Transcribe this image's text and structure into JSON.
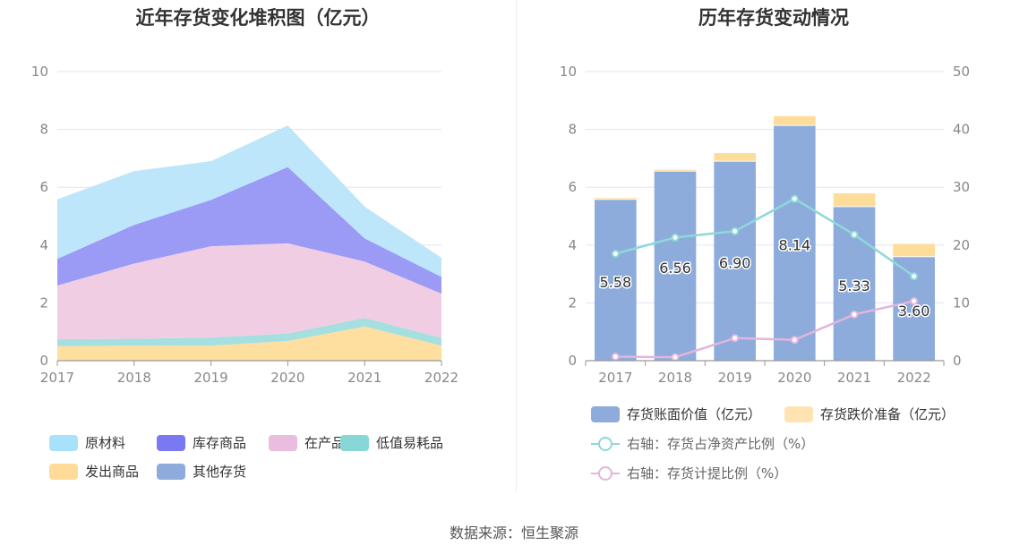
{
  "left_title": "近年存货变化堆积图（亿元）",
  "right_title": "历年存货变动情况",
  "source": "数据来源：恒生聚源",
  "chart_data": [
    {
      "type": "area",
      "stacked": true,
      "x": [
        "2017",
        "2018",
        "2019",
        "2020",
        "2021",
        "2022"
      ],
      "ylim": [
        0,
        10
      ],
      "yticks": [
        "0",
        "2",
        "4",
        "6",
        "8",
        "10"
      ],
      "series": [
        {
          "name": "发出商品",
          "color": "#FFDFA0",
          "values": [
            0.5,
            0.52,
            0.52,
            0.68,
            1.18,
            0.52
          ]
        },
        {
          "name": "低值易耗品",
          "color": "#A6DFDF",
          "values": [
            0.24,
            0.24,
            0.28,
            0.26,
            0.3,
            0.27
          ]
        },
        {
          "name": "在产品",
          "color": "#F0CDE3",
          "values": [
            1.86,
            2.6,
            3.16,
            3.12,
            1.95,
            1.53
          ]
        },
        {
          "name": "库存商品",
          "color": "#9B9BF6",
          "values": [
            0.92,
            1.34,
            1.6,
            2.64,
            0.8,
            0.58
          ]
        },
        {
          "name": "原材料",
          "color": "#BDE6FA",
          "values": [
            2.06,
            1.86,
            1.34,
            1.44,
            1.1,
            0.66
          ]
        }
      ],
      "legend": [
        {
          "name": "原材料",
          "color": "#A8E2FA"
        },
        {
          "name": "库存商品",
          "color": "#7B79F2"
        },
        {
          "name": "在产品",
          "color": "#EABCDD"
        },
        {
          "name": "低值易耗品",
          "color": "#88D7D7"
        },
        {
          "name": "发出商品",
          "color": "#FEDB99"
        },
        {
          "name": "其他存货",
          "color": "#8EABDB"
        }
      ]
    },
    {
      "type": "bar",
      "categories": [
        "2017",
        "2018",
        "2019",
        "2020",
        "2021",
        "2022"
      ],
      "ylim": [
        0,
        10
      ],
      "y2lim": [
        0,
        50
      ],
      "yticks": [
        "0",
        "2",
        "4",
        "6",
        "8",
        "10"
      ],
      "y2ticks": [
        "0",
        "10",
        "20",
        "30",
        "40",
        "50"
      ],
      "series": [
        {
          "name": "存货账面价值（亿元）",
          "type": "bar",
          "stack": "a",
          "color": "#8DACDB",
          "values": [
            5.58,
            6.56,
            6.9,
            8.14,
            5.33,
            3.6
          ],
          "labels": [
            "5.58",
            "6.56",
            "6.90",
            "8.14",
            "5.33",
            "3.60"
          ]
        },
        {
          "name": "存货跌价准备（亿元）",
          "type": "bar",
          "stack": "a",
          "color": "#FEDC99",
          "values": [
            0.05,
            0.05,
            0.28,
            0.32,
            0.46,
            0.44
          ]
        },
        {
          "name": "右轴：存货占净资产比例（%）",
          "type": "line",
          "axis": "right",
          "color": "#8ED8DA",
          "values": [
            18.5,
            21.3,
            22.4,
            28.0,
            21.8,
            14.6
          ]
        },
        {
          "name": "右轴：存货计提比例（%）",
          "type": "line",
          "axis": "right",
          "color": "#E2B5DC",
          "values": [
            0.7,
            0.6,
            3.9,
            3.6,
            8.0,
            10.3
          ]
        }
      ],
      "legend": [
        {
          "name": "存货账面价值（亿元）",
          "color": "#8DACDB"
        },
        {
          "name": "存货跌价准备（亿元）",
          "color": "#FFE3B3"
        },
        {
          "name": "右轴：存货占净资产比例（%）",
          "color": "#8ED8DA"
        },
        {
          "name": "右轴：存货计提比例（%）",
          "color": "#E2B5DC"
        }
      ]
    }
  ]
}
